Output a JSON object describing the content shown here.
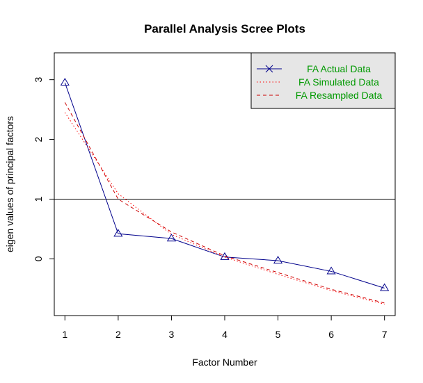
{
  "chart_data": {
    "type": "line",
    "title": "Parallel Analysis Scree Plots",
    "xlabel": "Factor Number",
    "ylabel": "eigen values of principal factors",
    "x": [
      1,
      2,
      3,
      4,
      5,
      6,
      7
    ],
    "xlim": [
      0.8,
      7.2
    ],
    "ylim": [
      -0.95,
      3.45
    ],
    "xticks": [
      "1",
      "2",
      "3",
      "4",
      "5",
      "6",
      "7"
    ],
    "yticks": [
      "0",
      "1",
      "2",
      "3"
    ],
    "reference_line": 1,
    "grid": false,
    "legend_position": "top-right",
    "legend_bg": "#e6e6e6",
    "series": [
      {
        "name": "FA  Actual Data",
        "color": "#00008b",
        "style": "solid",
        "marker": "triangle",
        "values": [
          2.95,
          0.42,
          0.34,
          0.03,
          -0.03,
          -0.21,
          -0.49
        ]
      },
      {
        "name": "FA  Simulated Data",
        "color": "#ff0000",
        "style": "dotted",
        "marker": "none",
        "values": [
          2.45,
          1.09,
          0.41,
          0.03,
          -0.26,
          -0.53,
          -0.76
        ]
      },
      {
        "name": "FA  Resampled Data",
        "color": "#cc0000",
        "style": "dashed",
        "marker": "none",
        "values": [
          2.62,
          1.0,
          0.45,
          0.05,
          -0.23,
          -0.51,
          -0.74
        ]
      }
    ],
    "legend_text_color": "#009900"
  }
}
